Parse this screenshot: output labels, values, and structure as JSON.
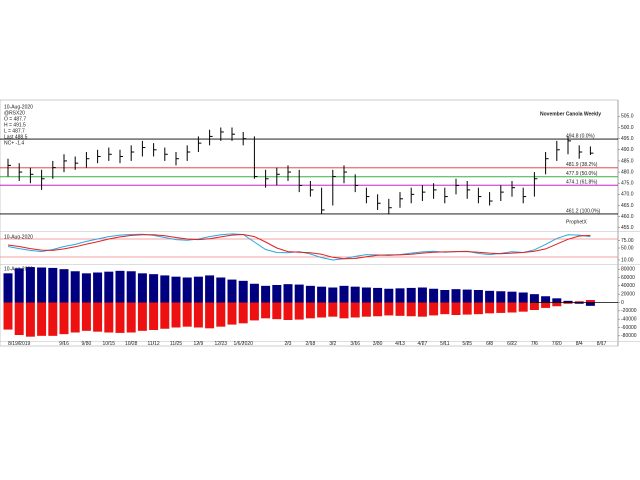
{
  "chart_data": [
    {
      "type": "hlc",
      "title": "November Canola Weekly",
      "info": [
        "10-Aug-2020",
        "@RSX20",
        "O = 487.7",
        "H = 491.5",
        "L = 487.7",
        "Last 488.5",
        "NC+ -1.4"
      ],
      "watermark": "ProphetX",
      "color": "#000000",
      "high": [
        486,
        484,
        482,
        481,
        485,
        488,
        487,
        489,
        490,
        491,
        490,
        492,
        494,
        493,
        491,
        489,
        492,
        496,
        499,
        500,
        500,
        498,
        496,
        481,
        482,
        483,
        481,
        476,
        473,
        481,
        483,
        479,
        473,
        470,
        468,
        471,
        473,
        474,
        475,
        473,
        477,
        476,
        473,
        471,
        474,
        476,
        473,
        480,
        489,
        494,
        496,
        492,
        491.5,
        null
      ],
      "low": [
        478,
        476,
        475,
        472,
        477,
        480,
        481,
        482,
        484,
        485,
        484,
        485,
        487,
        487,
        485,
        483,
        485,
        489,
        492,
        494,
        494,
        492,
        477,
        473,
        474,
        476,
        471,
        469,
        461.2,
        465,
        475,
        471,
        466,
        463,
        461,
        464,
        466,
        467,
        468,
        466,
        470,
        468,
        466,
        465,
        467,
        469,
        466,
        469,
        479,
        485,
        488,
        486,
        487.7,
        null
      ],
      "close": [
        483,
        480,
        479,
        477,
        482,
        485,
        484,
        486,
        487,
        488,
        487,
        489,
        491,
        490,
        488,
        486,
        489,
        493,
        496,
        498,
        497,
        495,
        478,
        477,
        479,
        480,
        474,
        472,
        463,
        478,
        480,
        474,
        469,
        466,
        464,
        468,
        470,
        471,
        472,
        469,
        474,
        472,
        469,
        467,
        471,
        473,
        469,
        477,
        486,
        490,
        494,
        489,
        488.5,
        null
      ],
      "ylim": [
        454,
        511
      ],
      "yticks": [
        {
          "value": 505,
          "label": "505.0"
        },
        {
          "value": 500,
          "label": "500.0"
        },
        {
          "value": 495,
          "label": "495.0"
        },
        {
          "value": 490,
          "label": "490.0"
        },
        {
          "value": 485,
          "label": "485.0"
        },
        {
          "value": 480,
          "label": "480.0"
        },
        {
          "value": 475,
          "label": "475.0"
        },
        {
          "value": 470,
          "label": "470.0"
        },
        {
          "value": 465,
          "label": "465.0"
        },
        {
          "value": 460,
          "label": "460.0"
        },
        {
          "value": 455,
          "label": "455.0"
        }
      ],
      "levels": [
        {
          "value": 494.8,
          "label": "494.8 (0.0%)",
          "color": "#000000"
        },
        {
          "value": 481.9,
          "label": "481.9 (38.2%)",
          "color": "#e03030"
        },
        {
          "value": 477.9,
          "label": "477.9 (50.0%)",
          "color": "#3cb043"
        },
        {
          "value": 474.1,
          "label": "474.1 (61.8%)",
          "color": "#c000c0"
        },
        {
          "value": 461.2,
          "label": "461.2 (100.0%)",
          "color": "#000000"
        }
      ]
    },
    {
      "type": "line",
      "date_label": "10-Aug-2020",
      "series": [
        {
          "color": "#29a8e0",
          "values": [
            55,
            48,
            42,
            38,
            45,
            55,
            62,
            72,
            80,
            88,
            93,
            95,
            96,
            92,
            85,
            78,
            76,
            80,
            88,
            94,
            97,
            95,
            70,
            45,
            35,
            34,
            38,
            30,
            18,
            10,
            14,
            22,
            28,
            27,
            25,
            28,
            33,
            37,
            39,
            36,
            38,
            39,
            32,
            28,
            32,
            38,
            35,
            44,
            62,
            82,
            94,
            93,
            88,
            null
          ]
        },
        {
          "color": "#e02020",
          "values": [
            60,
            55,
            48,
            43,
            42,
            47,
            54,
            63,
            71,
            80,
            87,
            92,
            94,
            94,
            91,
            85,
            80,
            78,
            81,
            87,
            93,
            95,
            88,
            70,
            50,
            38,
            36,
            34,
            29,
            19,
            14,
            15,
            21,
            26,
            27,
            27,
            29,
            33,
            36,
            37,
            38,
            38,
            36,
            33,
            31,
            33,
            35,
            39,
            47,
            63,
            79,
            90,
            92,
            null
          ]
        }
      ],
      "ref_lines": [
        80,
        20
      ],
      "ref_color": "#f08080",
      "ylim": [
        0,
        100
      ],
      "yticks": [
        {
          "value": 75,
          "label": "75.00"
        },
        {
          "value": 50,
          "label": "50.00"
        },
        {
          "value": 10,
          "label": "10.00"
        }
      ]
    },
    {
      "type": "bar",
      "date_label": "10-Aug-2020",
      "categories": [
        null,
        "8/19/2019",
        null,
        null,
        null,
        "9/16",
        null,
        "9/30",
        null,
        "10/15",
        null,
        "10/28",
        null,
        "11/12",
        null,
        "11/25",
        null,
        "12/9",
        null,
        "12/23",
        null,
        "1/6/2020",
        null,
        null,
        null,
        "2/3",
        null,
        "2/18",
        null,
        "3/2",
        null,
        "3/16",
        null,
        "3/30",
        null,
        "4/13",
        null,
        "4/27",
        null,
        "5/11",
        null,
        "5/25",
        null,
        "6/8",
        null,
        "6/22",
        null,
        "7/6",
        null,
        "7/20",
        null,
        "8/4",
        null,
        "8/17"
      ],
      "series": [
        {
          "color": "#00007f",
          "values": [
            70000,
            82000,
            85000,
            84000,
            83000,
            80000,
            75000,
            70000,
            72000,
            74000,
            76000,
            75000,
            70000,
            68000,
            65000,
            62000,
            60000,
            62000,
            65000,
            60000,
            55000,
            52000,
            45000,
            40000,
            42000,
            44000,
            43000,
            40000,
            38000,
            36000,
            40000,
            38000,
            36000,
            35000,
            33000,
            34000,
            35000,
            36000,
            33000,
            30000,
            32000,
            31000,
            30000,
            28000,
            27000,
            26000,
            24000,
            20000,
            15000,
            10000,
            4000,
            -3000,
            -8000,
            null
          ]
        },
        {
          "color": "#ee1111",
          "values": [
            -65000,
            -78000,
            -82000,
            -80000,
            -80000,
            -76000,
            -72000,
            -68000,
            -70000,
            -72000,
            -73000,
            -72000,
            -68000,
            -66000,
            -63000,
            -60000,
            -58000,
            -60000,
            -62000,
            -58000,
            -53000,
            -50000,
            -43000,
            -38000,
            -40000,
            -42000,
            -41000,
            -38000,
            -36000,
            -34000,
            -38000,
            -36000,
            -34000,
            -33000,
            -31000,
            -32000,
            -33000,
            -34000,
            -31000,
            -28000,
            -30000,
            -29000,
            -28000,
            -26000,
            -25000,
            -24000,
            -22000,
            -18000,
            -13000,
            -9000,
            -3000,
            3000,
            6000,
            null
          ]
        }
      ],
      "ylim": [
        -90000,
        90000
      ],
      "yticks": [
        80000,
        60000,
        40000,
        20000,
        0,
        -20000,
        -40000,
        -60000,
        -80000
      ]
    }
  ]
}
